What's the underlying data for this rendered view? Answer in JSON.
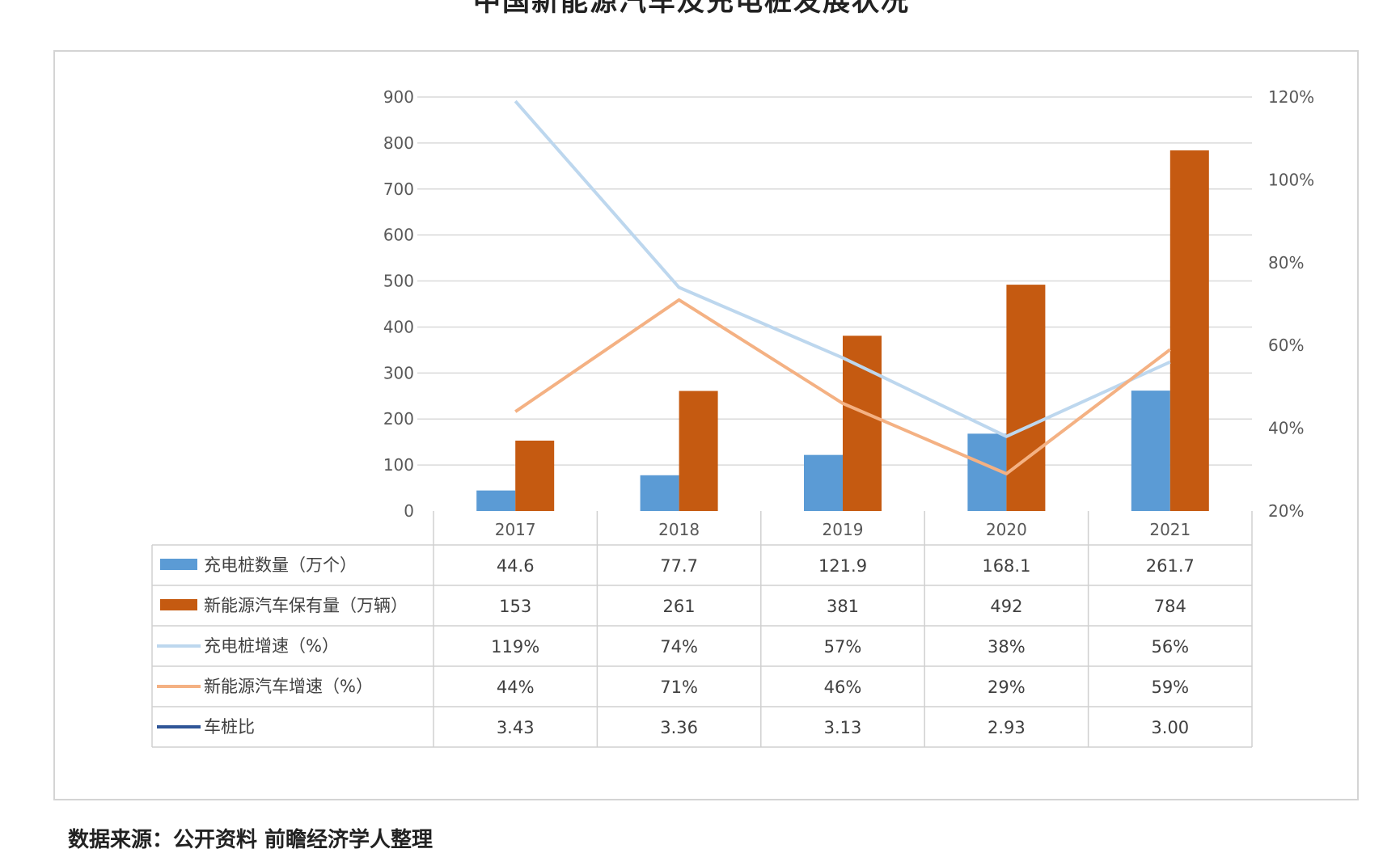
{
  "title": "中国新能源汽车及充电桩发展状况",
  "source_note": "数据来源：公开资料 前瞻经济学人整理",
  "chart_data": {
    "type": "bar",
    "categories": [
      "2017",
      "2018",
      "2019",
      "2020",
      "2021"
    ],
    "ylim": [
      0,
      900
    ],
    "y_ticks": [
      0,
      100,
      200,
      300,
      400,
      500,
      600,
      700,
      800,
      900
    ],
    "y2lim": [
      0.2,
      1.2
    ],
    "y2_ticks": [
      "20%",
      "40%",
      "60%",
      "80%",
      "100%",
      "120%"
    ],
    "grid": true,
    "series": [
      {
        "name": "充电桩数量（万个）",
        "kind": "bar",
        "axis": "left",
        "color": "#5B9BD5",
        "values": [
          44.6,
          77.7,
          121.9,
          168.1,
          261.7
        ],
        "table_values": [
          "44.6",
          "77.7",
          "121.9",
          "168.1",
          "261.7"
        ]
      },
      {
        "name": "新能源汽车保有量（万辆）",
        "kind": "bar",
        "axis": "left",
        "color": "#C55A11",
        "values": [
          153,
          261,
          381,
          492,
          784
        ],
        "table_values": [
          "153",
          "261",
          "381",
          "492",
          "784"
        ]
      },
      {
        "name": "充电桩增速（%）",
        "kind": "line",
        "axis": "right",
        "color": "#BDD7EE",
        "values": [
          1.19,
          0.74,
          0.57,
          0.38,
          0.56
        ],
        "table_values": [
          "119%",
          "74%",
          "57%",
          "38%",
          "56%"
        ]
      },
      {
        "name": "新能源汽车增速（%）",
        "kind": "line",
        "axis": "right",
        "color": "#F4B183",
        "values": [
          0.44,
          0.71,
          0.46,
          0.29,
          0.59
        ],
        "table_values": [
          "44%",
          "71%",
          "46%",
          "29%",
          "59%"
        ]
      },
      {
        "name": "车桩比",
        "kind": "line-hidden",
        "axis": "none",
        "color": "#2F5597",
        "values": [
          3.43,
          3.36,
          3.13,
          2.93,
          3.0
        ],
        "table_values": [
          "3.43",
          "3.36",
          "3.13",
          "2.93",
          "3.00"
        ]
      }
    ]
  }
}
